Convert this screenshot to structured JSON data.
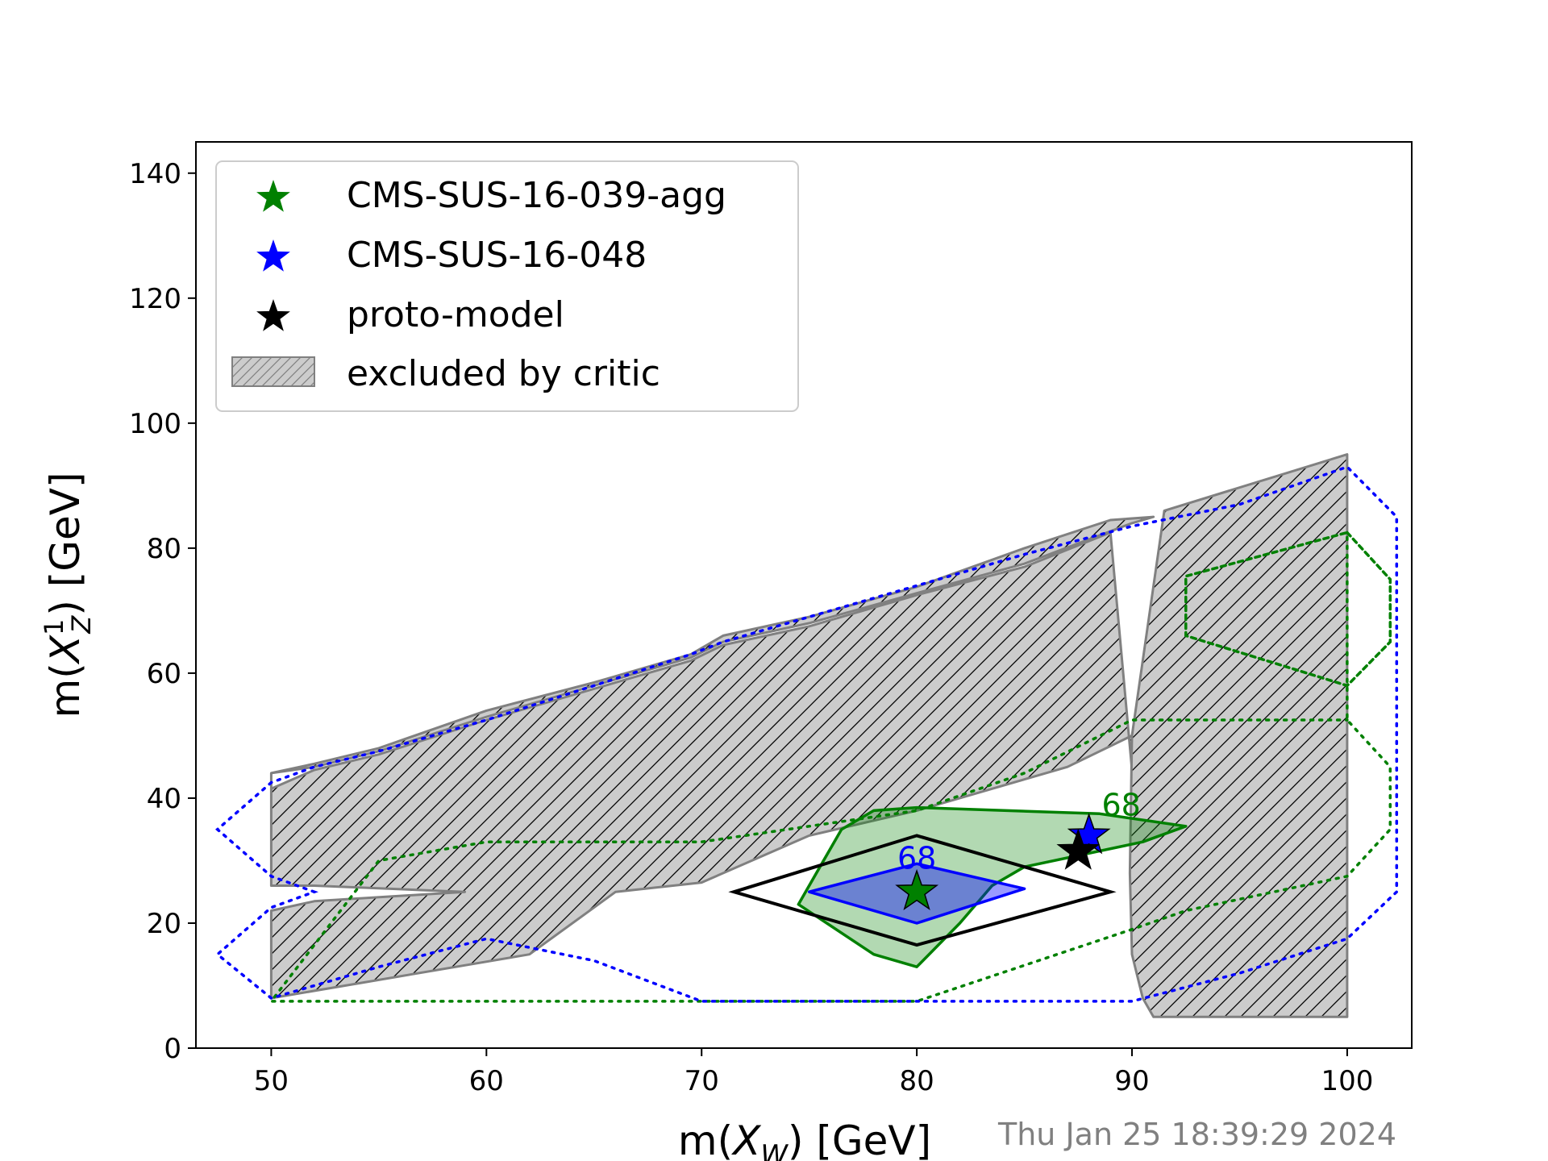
{
  "chart_data": {
    "type": "scatter",
    "xlabel_text": "m(",
    "xlabel_sym": "X",
    "xlabel_sub": "W",
    "xlabel_unit": ") [GeV]",
    "ylabel_text": "m(",
    "ylabel_sym": "X",
    "ylabel_sup": "1",
    "ylabel_sub": "Z",
    "ylabel_unit": ") [GeV]",
    "xlim": [
      46.5,
      103
    ],
    "ylim": [
      0,
      145
    ],
    "xticks": [
      50,
      60,
      70,
      80,
      90,
      100
    ],
    "yticks": [
      0,
      20,
      40,
      60,
      80,
      100,
      120,
      140
    ],
    "timestamp": "Thu Jan 25 18:39:29 2024",
    "legend_position": "upper-left",
    "legend": [
      {
        "label": "CMS-SUS-16-039-agg",
        "marker": "star",
        "color": "#008000"
      },
      {
        "label": "CMS-SUS-16-048",
        "marker": "star",
        "color": "#0000ff"
      },
      {
        "label": "proto-model",
        "marker": "star",
        "color": "#000000"
      },
      {
        "label": "excluded by critic",
        "marker": "hatched-patch",
        "color": "#808080"
      }
    ],
    "colors": {
      "green": "#008000",
      "blue": "#0000ff",
      "black": "#000000",
      "excl_fill": "#cccccc",
      "excl_edge": "#808080"
    },
    "points": [
      {
        "name": "CMS-SUS-16-039-agg",
        "x": 80.0,
        "y": 25.0,
        "color": "#008000"
      },
      {
        "name": "CMS-SUS-16-048",
        "x": 88.0,
        "y": 34.0,
        "color": "#0000ff"
      },
      {
        "name": "proto-model",
        "x": 87.5,
        "y": 31.5,
        "color": "#000000"
      }
    ],
    "excluded_region_main": [
      [
        50,
        44
      ],
      [
        52,
        45
      ],
      [
        55,
        47.5
      ],
      [
        60,
        53
      ],
      [
        65,
        58
      ],
      [
        69.5,
        62.5
      ],
      [
        71,
        65
      ],
      [
        75,
        68
      ],
      [
        80,
        72.8
      ],
      [
        85,
        77.5
      ],
      [
        90,
        84
      ],
      [
        91,
        85
      ],
      [
        89,
        84.5
      ],
      [
        85,
        80
      ],
      [
        80,
        73.8
      ],
      [
        75,
        69
      ],
      [
        71,
        66
      ],
      [
        69.5,
        63
      ],
      [
        65,
        58.5
      ],
      [
        60,
        54
      ],
      [
        55,
        48
      ],
      [
        52,
        45.5
      ],
      [
        50,
        44
      ],
      [
        50,
        41.5
      ],
      [
        52,
        44.5
      ],
      [
        55,
        47
      ],
      [
        60,
        52.5
      ],
      [
        65,
        57.5
      ],
      [
        69.5,
        62
      ],
      [
        71,
        64.5
      ],
      [
        75,
        67.5
      ],
      [
        80,
        72.5
      ],
      [
        85,
        77
      ],
      [
        89,
        82.5
      ],
      [
        90,
        44.5
      ],
      [
        90,
        50
      ],
      [
        87,
        45
      ],
      [
        80,
        38
      ],
      [
        75,
        34
      ],
      [
        70,
        26.5
      ],
      [
        66,
        25
      ],
      [
        62,
        15
      ],
      [
        50,
        8
      ],
      [
        50,
        22
      ],
      [
        52,
        23.5
      ],
      [
        59,
        25
      ],
      [
        52,
        26
      ],
      [
        50,
        26
      ]
    ],
    "excluded_region_right": [
      [
        91.5,
        86
      ],
      [
        100,
        95
      ],
      [
        100,
        5
      ],
      [
        91,
        5
      ],
      [
        90.5,
        8
      ],
      [
        90,
        15
      ],
      [
        89.9,
        28
      ],
      [
        90,
        50
      ]
    ],
    "contour_039_68": [
      [
        76.5,
        35
      ],
      [
        78,
        38
      ],
      [
        80,
        38.5
      ],
      [
        88.5,
        37.5
      ],
      [
        92.5,
        35.5
      ],
      [
        90.5,
        33
      ],
      [
        85,
        29
      ],
      [
        83.5,
        26
      ],
      [
        82,
        20
      ],
      [
        80,
        13
      ],
      [
        78,
        15
      ],
      [
        74.5,
        23
      ],
      [
        76.5,
        35
      ]
    ],
    "contour_039_68_label": "68",
    "contour_039_68_label_pos": [
      89.5,
      39
    ],
    "contour_048_68": [
      [
        75,
        25
      ],
      [
        80,
        29.5
      ],
      [
        85,
        25.5
      ],
      [
        80,
        20
      ],
      [
        75,
        25
      ]
    ],
    "contour_048_68_label": "68",
    "contour_048_68_label_pos": [
      80,
      30.5
    ],
    "proto_contour": [
      [
        71.5,
        25
      ],
      [
        80,
        34
      ],
      [
        89,
        25
      ],
      [
        80,
        16.5
      ],
      [
        71.5,
        25
      ]
    ],
    "dotted_green": [
      [
        100,
        82.5
      ],
      [
        102,
        75
      ],
      [
        102,
        65
      ],
      [
        100,
        58
      ],
      [
        92.5,
        66
      ],
      [
        92.5,
        75.5
      ],
      [
        100,
        82.5
      ],
      [
        102,
        75
      ],
      [
        102,
        65
      ],
      [
        100,
        58
      ],
      [
        92.5,
        66
      ],
      [
        92.5,
        75.5
      ],
      [
        100,
        82.5
      ],
      [
        100,
        52.5
      ],
      [
        102,
        45
      ],
      [
        102,
        35
      ],
      [
        100,
        27.5
      ],
      [
        92.5,
        22
      ],
      [
        90,
        19
      ],
      [
        80,
        7.5
      ],
      [
        70,
        7.5
      ],
      [
        50,
        7.5
      ],
      [
        55,
        30
      ],
      [
        60,
        33
      ],
      [
        70,
        33
      ],
      [
        80,
        38
      ],
      [
        85,
        44
      ],
      [
        90,
        52.5
      ],
      [
        100,
        52.5
      ]
    ],
    "dotted_blue": [
      [
        50,
        42.5
      ],
      [
        47.5,
        35
      ],
      [
        50,
        27.5
      ],
      [
        52,
        25
      ],
      [
        50,
        22.5
      ],
      [
        47.5,
        15
      ],
      [
        50,
        8
      ],
      [
        55,
        13
      ],
      [
        60,
        17.5
      ],
      [
        65,
        14
      ],
      [
        70,
        7.5
      ],
      [
        80,
        7.5
      ],
      [
        90,
        7.5
      ],
      [
        95,
        12
      ],
      [
        100,
        17.5
      ],
      [
        102.3,
        25
      ],
      [
        102.3,
        35
      ],
      [
        102.3,
        45
      ],
      [
        102.3,
        55
      ],
      [
        102.3,
        65
      ],
      [
        102.3,
        75
      ],
      [
        102.3,
        85
      ],
      [
        100,
        93
      ],
      [
        95,
        87
      ],
      [
        90,
        83.5
      ],
      [
        85,
        79
      ],
      [
        80,
        74
      ],
      [
        75,
        69
      ],
      [
        71,
        65
      ],
      [
        69.5,
        63
      ],
      [
        65,
        58
      ],
      [
        60,
        52.5
      ],
      [
        55,
        47.5
      ],
      [
        52,
        45
      ],
      [
        50,
        42.5
      ]
    ]
  }
}
